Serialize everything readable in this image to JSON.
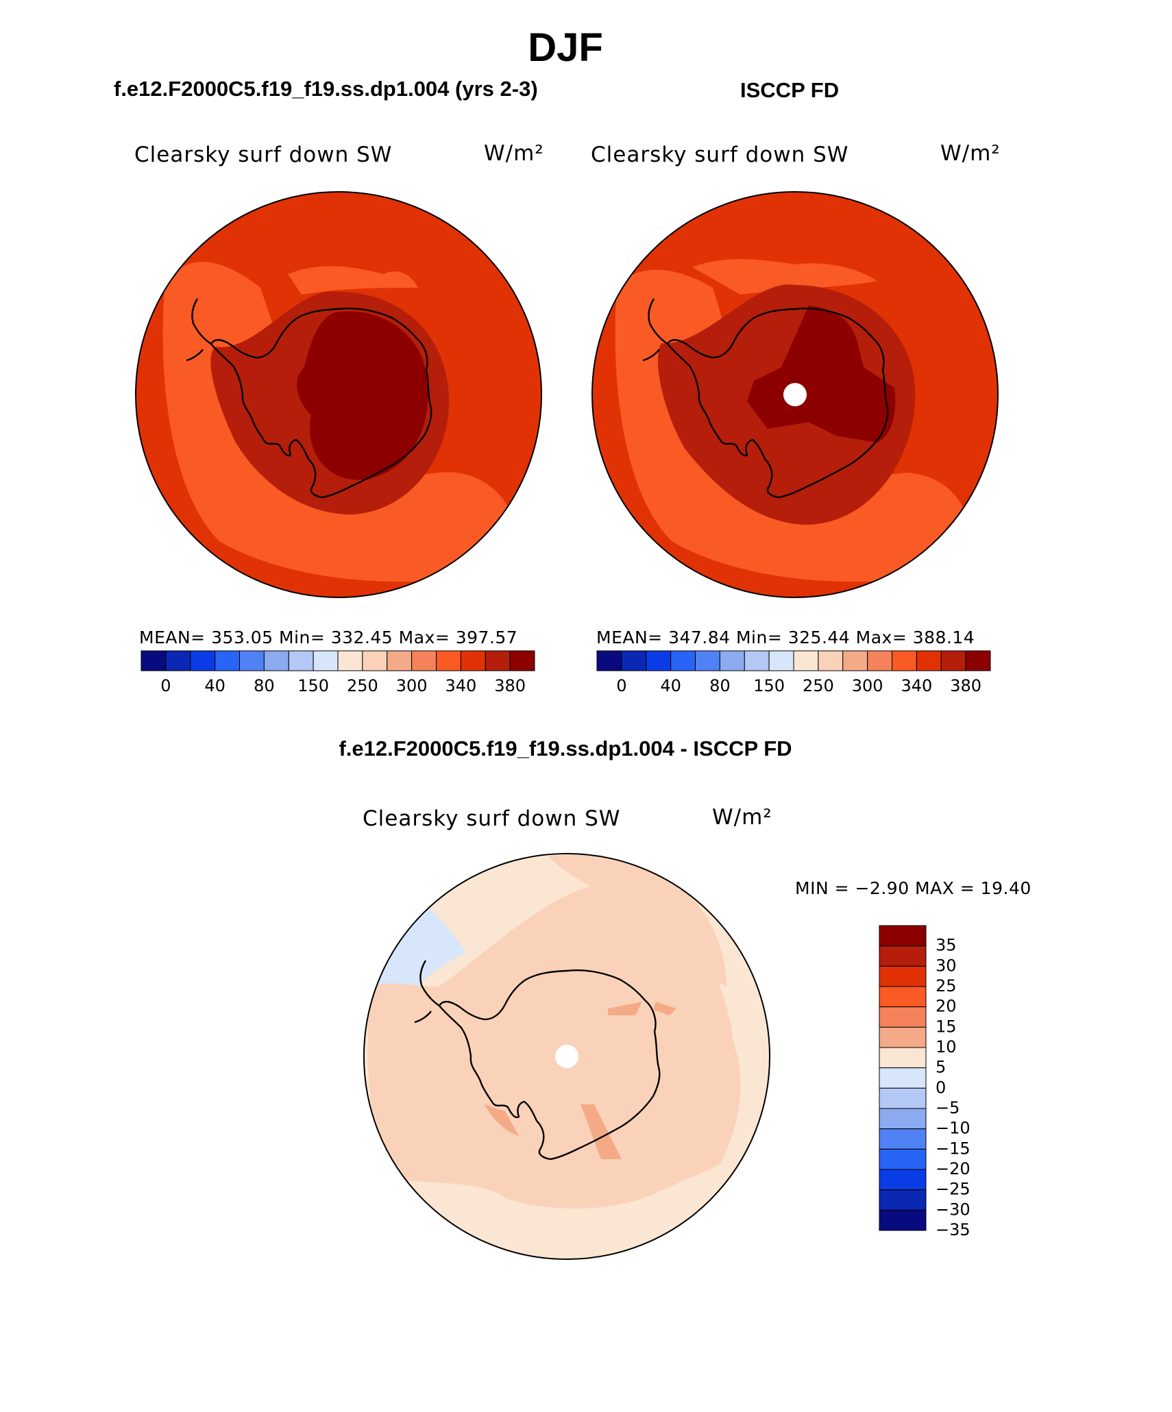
{
  "figure": {
    "title": "DJF",
    "left_panel": {
      "subtitle": "f.e12.F2000C5.f19_f19.ss.dp1.004 (yrs 2-3)",
      "variable": "Clearsky surf down SW",
      "units": "W/m²",
      "stats": "MEAN= 353.05   Min= 332.45   Max= 397.57"
    },
    "right_panel": {
      "subtitle": "ISCCP FD",
      "variable": "Clearsky surf down SW",
      "units": "W/m²",
      "stats": "MEAN= 347.84   Min= 325.44   Max= 388.14"
    },
    "diff_panel": {
      "subtitle": "f.e12.F2000C5.f19_f19.ss.dp1.004 - ISCCP FD",
      "variable": "Clearsky surf down SW",
      "units": "W/m²",
      "stats": "MIN =   −2.90 MAX =   19.40"
    }
  },
  "chart_data": [
    {
      "type": "heatmap",
      "title": "f.e12.F2000C5.f19_f19.ss.dp1.004 (yrs 2-3)",
      "projection": "south polar stereographic",
      "variable": "Clearsky surf down SW",
      "units": "W/m²",
      "mean": 353.05,
      "min": 332.45,
      "max": 397.57,
      "colorbar": {
        "orientation": "horizontal",
        "colors": [
          "#0a0a80",
          "#0a28b4",
          "#0a3ce6",
          "#2864f5",
          "#5082f5",
          "#8caaf0",
          "#b4c8f5",
          "#d7e6fa",
          "#fae6d2",
          "#fad2b9",
          "#f5aa87",
          "#f5825a",
          "#fa5a23",
          "#e13205",
          "#b41e0a",
          "#8c0000"
        ],
        "ticks": [
          "0",
          "40",
          "80",
          "150",
          "250",
          "300",
          "340",
          "380"
        ]
      }
    },
    {
      "type": "heatmap",
      "title": "ISCCP FD",
      "projection": "south polar stereographic",
      "variable": "Clearsky surf down SW",
      "units": "W/m²",
      "mean": 347.84,
      "min": 325.44,
      "max": 388.14,
      "colorbar": {
        "orientation": "horizontal",
        "colors": [
          "#0a0a80",
          "#0a28b4",
          "#0a3ce6",
          "#2864f5",
          "#5082f5",
          "#8caaf0",
          "#b4c8f5",
          "#d7e6fa",
          "#fae6d2",
          "#fad2b9",
          "#f5aa87",
          "#f5825a",
          "#fa5a23",
          "#e13205",
          "#b41e0a",
          "#8c0000"
        ],
        "ticks": [
          "0",
          "40",
          "80",
          "150",
          "250",
          "300",
          "340",
          "380"
        ]
      }
    },
    {
      "type": "heatmap",
      "title": "f.e12.F2000C5.f19_f19.ss.dp1.004 - ISCCP FD",
      "projection": "south polar stereographic",
      "variable": "Clearsky surf down SW",
      "units": "W/m²",
      "min": -2.9,
      "max": 19.4,
      "colorbar": {
        "orientation": "vertical",
        "colors_top_to_bottom": [
          "#8c0000",
          "#b41e0a",
          "#e13205",
          "#fa5a23",
          "#f5825a",
          "#f5aa87",
          "#fae6d2",
          "#d7e6fa",
          "#b4c8f5",
          "#8caaf0",
          "#5082f5",
          "#2864f5",
          "#0a3ce6",
          "#0a28b4",
          "#0a0a80"
        ],
        "ticks": [
          "35",
          "30",
          "25",
          "20",
          "15",
          "10",
          "5",
          "0",
          "−5",
          "−10",
          "−15",
          "−20",
          "−25",
          "−30",
          "−35"
        ]
      }
    }
  ]
}
